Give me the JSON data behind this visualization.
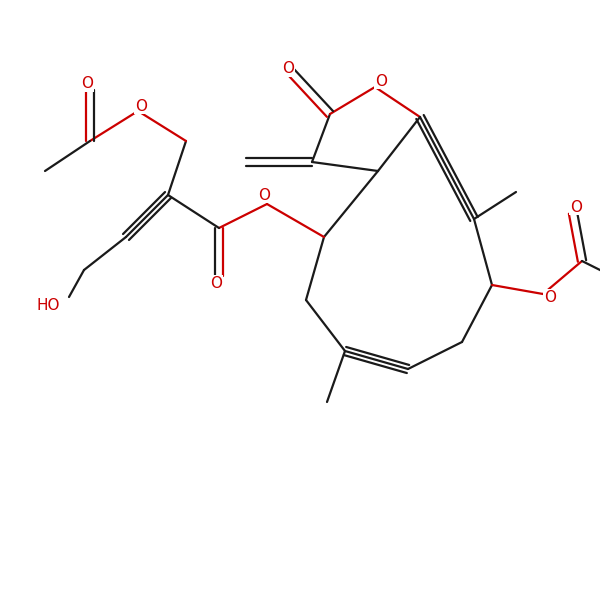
{
  "background": "#ffffff",
  "bond_color": "#1a1a1a",
  "oxygen_color": "#cc0000",
  "lw": 1.6,
  "figsize": [
    6.0,
    6.0
  ],
  "dpi": 100,
  "xlim": [
    0,
    10
  ],
  "ylim": [
    0,
    10
  ]
}
